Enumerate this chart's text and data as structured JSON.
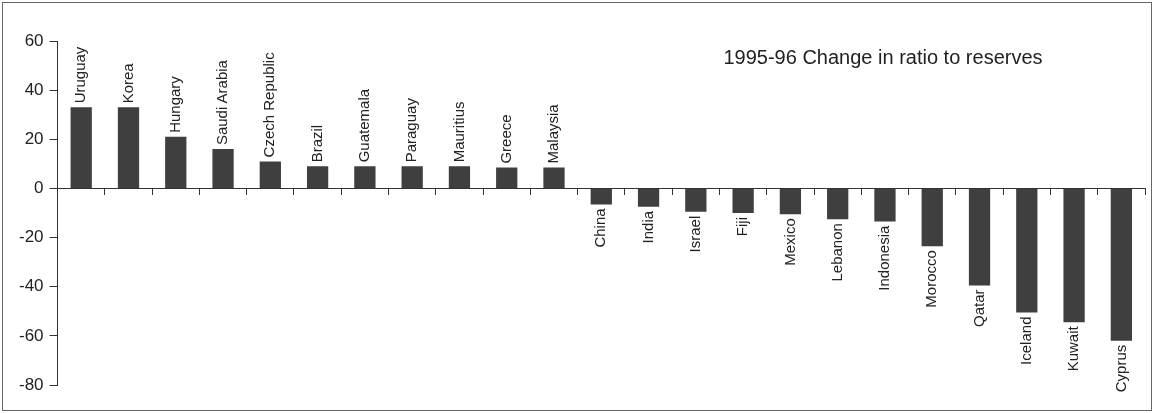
{
  "chart_data": {
    "type": "bar",
    "title": "1995-96 Change in ratio to reserves",
    "categories": [
      "Uruguay",
      "Korea",
      "Hungary",
      "Saudi Arabia",
      "Czech Republic",
      "Brazil",
      "Guatemala",
      "Paraguay",
      "Mauritius",
      "Greece",
      "Malaysia",
      "China",
      "India",
      "Israel",
      "Fiji",
      "Mexico",
      "Lebanon",
      "Indonesia",
      "Morocco",
      "Qatar",
      "Iceland",
      "Kuwait",
      "Cyprus"
    ],
    "values": [
      33,
      33,
      21,
      16,
      11,
      9,
      9,
      9,
      9,
      8.5,
      8.5,
      -6.5,
      -7.5,
      -9.5,
      -10,
      -10.5,
      -12.5,
      -13.5,
      -23.5,
      -39.5,
      -50.5,
      -54.5,
      -62
    ],
    "color": "#3f3f3f",
    "ylim": [
      -80,
      60
    ],
    "yticks": [
      -80,
      -60,
      -40,
      -20,
      0,
      20,
      40,
      60
    ],
    "grid": false,
    "legend": false
  }
}
